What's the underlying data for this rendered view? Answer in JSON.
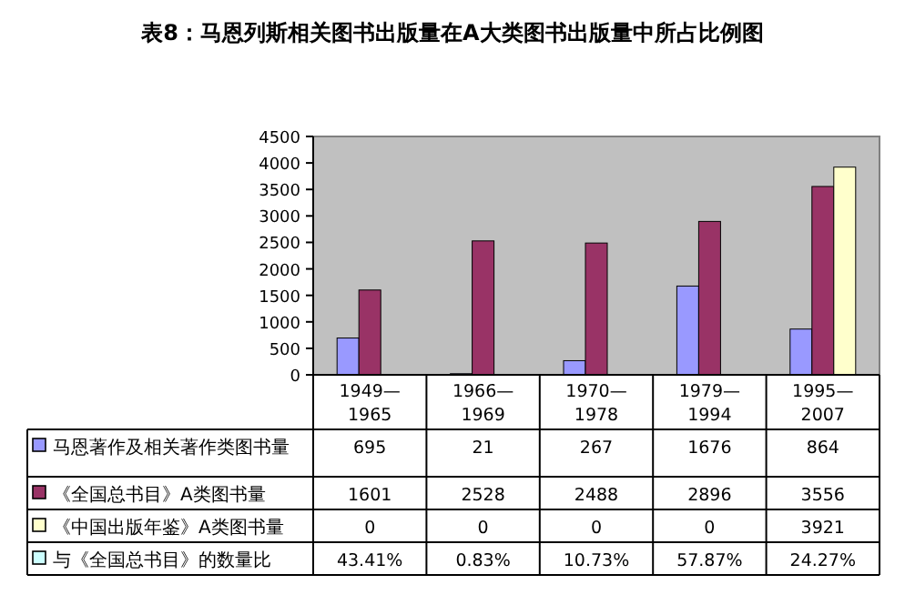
{
  "chart_data": {
    "type": "bar",
    "title": "表8：马恩列斯相关图书出版量在A大类图书出版量中所占比例图",
    "categories": [
      "1949—1965",
      "1966—1969",
      "1970—1978",
      "1979—1994",
      "1995—2007"
    ],
    "series": [
      {
        "name": "马恩著作及相关著作类图书量",
        "color": "#9999ff",
        "values": [
          695,
          21,
          267,
          1676,
          864
        ]
      },
      {
        "name": "《全国总书目》A类图书量",
        "color": "#993366",
        "values": [
          1601,
          2528,
          2488,
          2896,
          3556
        ]
      },
      {
        "name": "《中国出版年鉴》A类图书量",
        "color": "#ffffcc",
        "values": [
          0,
          0,
          0,
          0,
          3921
        ]
      },
      {
        "name": "与《全国总书目》的数量比",
        "color": "#ccffff",
        "values": [
          null,
          null,
          null,
          null,
          null
        ],
        "value_labels": [
          "43.41%",
          "0.83%",
          "10.73%",
          "57.87%",
          "24.27%"
        ]
      }
    ],
    "ylim": [
      0,
      4500
    ],
    "yticks": [
      0,
      500,
      1000,
      1500,
      2000,
      2500,
      3000,
      3500,
      4000,
      4500
    ],
    "data_labels": true,
    "grid": false,
    "legend": "bottom left"
  }
}
